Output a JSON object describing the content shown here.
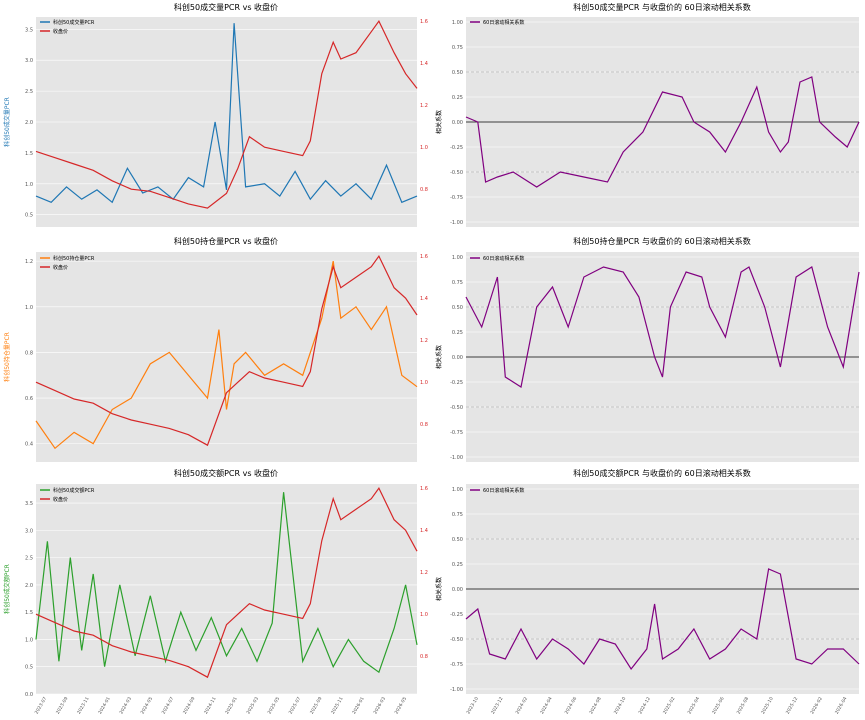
{
  "colors": {
    "background": "#e5e5e5",
    "grid": "#ffffff",
    "pcr_volume": "#1f77b4",
    "pcr_oi": "#ff7f0e",
    "pcr_amount": "#2ca02c",
    "close": "#d62728",
    "corr": "#800080",
    "zero_line": "#000000",
    "dash_line": "#999999"
  },
  "chart_data": [
    {
      "id": "vol",
      "type": "line",
      "title": "科创50成交量PCR vs 收盘价",
      "ylabel": "科创50成交量PCR",
      "y2label": "",
      "ylim": [
        0.3,
        3.7
      ],
      "yticks": [
        "0.5",
        "1.0",
        "1.5",
        "2.0",
        "2.5",
        "3.0",
        "3.5"
      ],
      "y2lim": [
        0.62,
        1.62
      ],
      "y2ticks": [
        "0.8",
        "1.0",
        "1.2",
        "1.4",
        "1.6"
      ],
      "legend": [
        "科创50成交量PCR",
        "收盘价"
      ],
      "legend_position": "top-left",
      "series": [
        {
          "name": "科创50成交量PCR",
          "axis": "left",
          "color_key": "pcr_volume",
          "x": [
            0,
            0.04,
            0.08,
            0.12,
            0.16,
            0.2,
            0.24,
            0.28,
            0.32,
            0.36,
            0.4,
            0.44,
            0.47,
            0.5,
            0.52,
            0.55,
            0.6,
            0.64,
            0.68,
            0.72,
            0.76,
            0.8,
            0.84,
            0.88,
            0.92,
            0.96,
            1
          ],
          "y": [
            0.8,
            0.7,
            0.95,
            0.75,
            0.9,
            0.7,
            1.25,
            0.85,
            0.95,
            0.75,
            1.1,
            0.95,
            2.0,
            0.9,
            3.6,
            0.95,
            1.0,
            0.8,
            1.2,
            0.75,
            1.05,
            0.8,
            1.0,
            0.75,
            1.3,
            0.7,
            0.8
          ]
        },
        {
          "name": "收盘价",
          "axis": "right",
          "color_key": "close",
          "x": [
            0,
            0.05,
            0.1,
            0.15,
            0.2,
            0.25,
            0.3,
            0.35,
            0.4,
            0.45,
            0.5,
            0.53,
            0.56,
            0.6,
            0.65,
            0.7,
            0.72,
            0.75,
            0.78,
            0.8,
            0.84,
            0.88,
            0.9,
            0.94,
            0.97,
            1
          ],
          "y": [
            0.98,
            0.95,
            0.92,
            0.89,
            0.84,
            0.8,
            0.79,
            0.76,
            0.73,
            0.71,
            0.78,
            0.9,
            1.05,
            1.0,
            0.98,
            0.96,
            1.03,
            1.35,
            1.5,
            1.42,
            1.45,
            1.55,
            1.6,
            1.45,
            1.35,
            1.28
          ]
        }
      ]
    },
    {
      "id": "vol_corr",
      "type": "line",
      "title": "科创50成交量PCR 与收盘价的 60日滚动相关系数",
      "ylabel": "相关系数",
      "ylim": [
        -1.05,
        1.05
      ],
      "yticks": [
        "-1.00",
        "-0.75",
        "-0.50",
        "-0.25",
        "0.00",
        "0.25",
        "0.50",
        "0.75",
        "1.00"
      ],
      "legend": [
        "60日滚动相关系数"
      ],
      "legend_position": "top-left",
      "series": [
        {
          "name": "60日滚动相关系数",
          "axis": "left",
          "color_key": "corr",
          "x": [
            0,
            0.03,
            0.05,
            0.08,
            0.12,
            0.18,
            0.24,
            0.3,
            0.36,
            0.4,
            0.45,
            0.5,
            0.55,
            0.58,
            0.62,
            0.66,
            0.7,
            0.74,
            0.77,
            0.8,
            0.82,
            0.85,
            0.88,
            0.9,
            0.94,
            0.97,
            1
          ],
          "y": [
            0.05,
            0.0,
            -0.6,
            -0.55,
            -0.5,
            -0.65,
            -0.5,
            -0.55,
            -0.6,
            -0.3,
            -0.1,
            0.3,
            0.25,
            0.0,
            -0.1,
            -0.3,
            0.0,
            0.35,
            -0.1,
            -0.3,
            -0.2,
            0.4,
            0.45,
            0.0,
            -0.15,
            -0.25,
            0.0
          ]
        }
      ]
    },
    {
      "id": "oi",
      "type": "line",
      "title": "科创50持仓量PCR vs 收盘价",
      "ylabel": "科创50持仓量PCR",
      "ylim": [
        0.32,
        1.24
      ],
      "yticks": [
        "0.4",
        "0.6",
        "0.8",
        "1.0",
        "1.2"
      ],
      "y2lim": [
        0.62,
        1.62
      ],
      "y2ticks": [
        "0.8",
        "1.0",
        "1.2",
        "1.4",
        "1.6"
      ],
      "legend": [
        "科创50持仓量PCR",
        "收盘价"
      ],
      "legend_position": "top-left",
      "series": [
        {
          "name": "科创50持仓量PCR",
          "axis": "left",
          "color_key": "pcr_oi",
          "x": [
            0,
            0.05,
            0.1,
            0.15,
            0.2,
            0.25,
            0.3,
            0.35,
            0.4,
            0.45,
            0.48,
            0.5,
            0.52,
            0.55,
            0.6,
            0.65,
            0.7,
            0.75,
            0.78,
            0.8,
            0.84,
            0.88,
            0.92,
            0.96,
            1
          ],
          "y": [
            0.5,
            0.38,
            0.45,
            0.4,
            0.55,
            0.6,
            0.75,
            0.8,
            0.7,
            0.6,
            0.9,
            0.55,
            0.75,
            0.8,
            0.7,
            0.75,
            0.7,
            0.95,
            1.2,
            0.95,
            1.0,
            0.9,
            1.0,
            0.7,
            0.65
          ]
        },
        {
          "name": "收盘价",
          "axis": "right",
          "color_key": "close",
          "x": [
            0,
            0.05,
            0.1,
            0.15,
            0.2,
            0.25,
            0.3,
            0.35,
            0.4,
            0.45,
            0.5,
            0.53,
            0.56,
            0.6,
            0.65,
            0.7,
            0.72,
            0.75,
            0.78,
            0.8,
            0.84,
            0.88,
            0.9,
            0.94,
            0.97,
            1
          ],
          "y": [
            1.0,
            0.96,
            0.92,
            0.9,
            0.85,
            0.82,
            0.8,
            0.78,
            0.75,
            0.7,
            0.95,
            1.0,
            1.05,
            1.02,
            1.0,
            0.98,
            1.05,
            1.35,
            1.55,
            1.45,
            1.5,
            1.55,
            1.6,
            1.45,
            1.4,
            1.32
          ]
        }
      ]
    },
    {
      "id": "oi_corr",
      "type": "line",
      "title": "科创50持仓量PCR 与收盘价的 60日滚动相关系数",
      "ylabel": "相关系数",
      "ylim": [
        -1.05,
        1.05
      ],
      "yticks": [
        "-1.00",
        "-0.75",
        "-0.50",
        "-0.25",
        "0.00",
        "0.25",
        "0.50",
        "0.75",
        "1.00"
      ],
      "legend": [
        "60日滚动相关系数"
      ],
      "legend_position": "top-left",
      "series": [
        {
          "name": "60日滚动相关系数",
          "axis": "left",
          "color_key": "corr",
          "x": [
            0,
            0.04,
            0.08,
            0.1,
            0.14,
            0.18,
            0.22,
            0.26,
            0.3,
            0.35,
            0.4,
            0.44,
            0.48,
            0.5,
            0.52,
            0.56,
            0.6,
            0.62,
            0.66,
            0.7,
            0.72,
            0.76,
            0.8,
            0.84,
            0.88,
            0.92,
            0.96,
            1
          ],
          "y": [
            0.6,
            0.3,
            0.8,
            -0.2,
            -0.3,
            0.5,
            0.7,
            0.3,
            0.8,
            0.9,
            0.85,
            0.6,
            0.0,
            -0.2,
            0.5,
            0.85,
            0.8,
            0.5,
            0.2,
            0.85,
            0.9,
            0.5,
            -0.1,
            0.8,
            0.9,
            0.3,
            -0.1,
            0.85
          ]
        }
      ]
    },
    {
      "id": "amt",
      "type": "line",
      "title": "科创50成交额PCR vs 收盘价",
      "ylabel": "科创50成交额PCR",
      "ylim": [
        0.0,
        3.85
      ],
      "yticks": [
        "0.0",
        "0.5",
        "1.0",
        "1.5",
        "2.0",
        "2.5",
        "3.0",
        "3.5"
      ],
      "y2lim": [
        0.62,
        1.62
      ],
      "y2ticks": [
        "0.8",
        "1.0",
        "1.2",
        "1.4",
        "1.6"
      ],
      "legend": [
        "科创50成交额PCR",
        "收盘价"
      ],
      "legend_position": "top-left",
      "series": [
        {
          "name": "科创50成交额PCR",
          "axis": "left",
          "color_key": "pcr_amount",
          "x": [
            0,
            0.03,
            0.06,
            0.09,
            0.12,
            0.15,
            0.18,
            0.22,
            0.26,
            0.3,
            0.34,
            0.38,
            0.42,
            0.46,
            0.5,
            0.54,
            0.58,
            0.62,
            0.65,
            0.7,
            0.74,
            0.78,
            0.82,
            0.86,
            0.9,
            0.94,
            0.97,
            1
          ],
          "y": [
            1.0,
            2.8,
            0.6,
            2.5,
            0.8,
            2.2,
            0.5,
            2.0,
            0.7,
            1.8,
            0.6,
            1.5,
            0.8,
            1.4,
            0.7,
            1.2,
            0.6,
            1.3,
            3.7,
            0.6,
            1.2,
            0.5,
            1.0,
            0.6,
            0.4,
            1.2,
            2.0,
            0.9
          ]
        },
        {
          "name": "收盘价",
          "axis": "right",
          "color_key": "close",
          "x": [
            0,
            0.05,
            0.1,
            0.15,
            0.2,
            0.25,
            0.3,
            0.35,
            0.4,
            0.45,
            0.5,
            0.53,
            0.56,
            0.6,
            0.65,
            0.7,
            0.72,
            0.75,
            0.78,
            0.8,
            0.84,
            0.88,
            0.9,
            0.94,
            0.97,
            1
          ],
          "y": [
            1.0,
            0.96,
            0.92,
            0.9,
            0.85,
            0.82,
            0.8,
            0.78,
            0.75,
            0.7,
            0.95,
            1.0,
            1.05,
            1.02,
            1.0,
            0.98,
            1.05,
            1.35,
            1.55,
            1.45,
            1.5,
            1.55,
            1.6,
            1.45,
            1.4,
            1.3
          ]
        }
      ],
      "xticks": [
        "2023-07",
        "2023-09",
        "2023-11",
        "2024-01",
        "2024-03",
        "2024-05",
        "2024-07",
        "2024-09",
        "2024-11",
        "2025-01",
        "2025-03",
        "2025-05",
        "2025-07",
        "2025-09",
        "2025-11",
        "2026-01",
        "2026-03",
        "2026-05"
      ]
    },
    {
      "id": "amt_corr",
      "type": "line",
      "title": "科创50成交额PCR 与收盘价的 60日滚动相关系数",
      "ylabel": "相关系数",
      "ylim": [
        -1.05,
        1.05
      ],
      "yticks": [
        "-1.00",
        "-0.75",
        "-0.50",
        "-0.25",
        "0.00",
        "0.25",
        "0.50",
        "0.75",
        "1.00"
      ],
      "legend": [
        "60日滚动相关系数"
      ],
      "legend_position": "top-left",
      "series": [
        {
          "name": "60日滚动相关系数",
          "axis": "left",
          "color_key": "corr",
          "x": [
            0,
            0.03,
            0.06,
            0.1,
            0.14,
            0.18,
            0.22,
            0.26,
            0.3,
            0.34,
            0.38,
            0.42,
            0.46,
            0.48,
            0.5,
            0.54,
            0.58,
            0.62,
            0.66,
            0.7,
            0.74,
            0.77,
            0.8,
            0.84,
            0.88,
            0.92,
            0.96,
            1
          ],
          "y": [
            -0.3,
            -0.2,
            -0.65,
            -0.7,
            -0.4,
            -0.7,
            -0.5,
            -0.6,
            -0.75,
            -0.5,
            -0.55,
            -0.8,
            -0.6,
            -0.15,
            -0.7,
            -0.6,
            -0.4,
            -0.7,
            -0.6,
            -0.4,
            -0.5,
            0.2,
            0.15,
            -0.7,
            -0.75,
            -0.6,
            -0.6,
            -0.75
          ]
        }
      ],
      "xticks": [
        "2023-10",
        "2023-12",
        "2024-02",
        "2024-04",
        "2024-06",
        "2024-08",
        "2024-10",
        "2024-12",
        "2025-02",
        "2025-04",
        "2025-06",
        "2025-08",
        "2025-10",
        "2025-12",
        "2026-02",
        "2026-04"
      ]
    }
  ]
}
